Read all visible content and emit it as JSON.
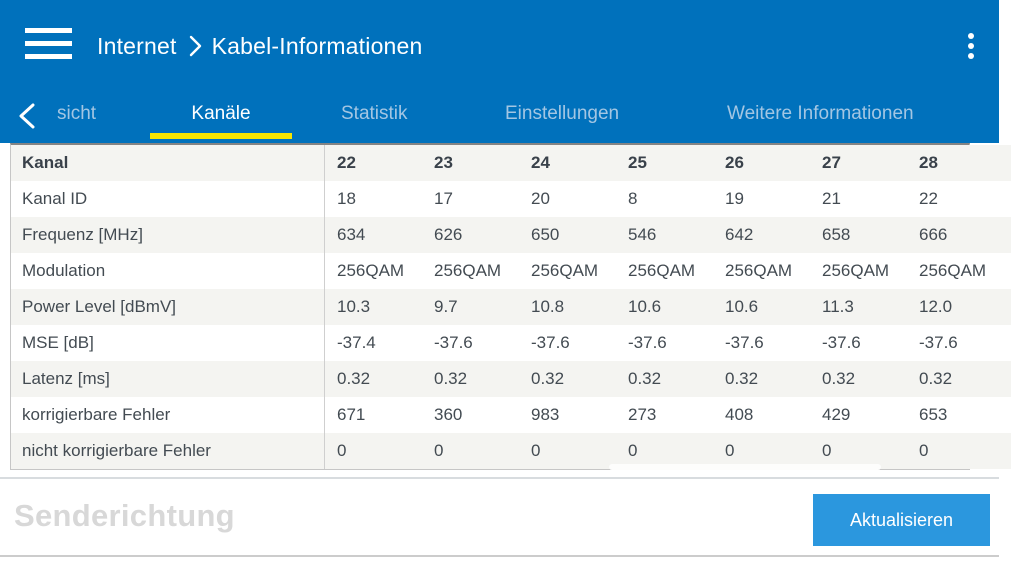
{
  "header": {
    "breadcrumb": {
      "section": "Internet",
      "separator": "›",
      "page": "Kabel-Informationen"
    }
  },
  "tabs": {
    "items": [
      {
        "label": "sicht",
        "active": false
      },
      {
        "label": "Kanäle",
        "active": true
      },
      {
        "label": "Statistik",
        "active": false
      },
      {
        "label": "Einstellungen",
        "active": false
      },
      {
        "label": "Weitere Informationen",
        "active": false
      }
    ]
  },
  "table": {
    "header_label": "Kanal",
    "channels": [
      "22",
      "23",
      "24",
      "25",
      "26",
      "27",
      "28"
    ],
    "rows": [
      {
        "label": "Kanal ID",
        "values": [
          "18",
          "17",
          "20",
          "8",
          "19",
          "21",
          "22"
        ]
      },
      {
        "label": "Frequenz [MHz]",
        "values": [
          "634",
          "626",
          "650",
          "546",
          "642",
          "658",
          "666"
        ]
      },
      {
        "label": "Modulation",
        "values": [
          "256QAM",
          "256QAM",
          "256QAM",
          "256QAM",
          "256QAM",
          "256QAM",
          "256QAM"
        ]
      },
      {
        "label": "Power Level [dBmV]",
        "values": [
          "10.3",
          "9.7",
          "10.8",
          "10.6",
          "10.6",
          "11.3",
          "12.0"
        ]
      },
      {
        "label": "MSE [dB]",
        "values": [
          "-37.4",
          "-37.6",
          "-37.6",
          "-37.6",
          "-37.6",
          "-37.6",
          "-37.6"
        ]
      },
      {
        "label": "Latenz [ms]",
        "values": [
          "0.32",
          "0.32",
          "0.32",
          "0.32",
          "0.32",
          "0.32",
          "0.32"
        ]
      },
      {
        "label": "korrigierbare Fehler",
        "values": [
          "671",
          "360",
          "983",
          "273",
          "408",
          "429",
          "653"
        ]
      },
      {
        "label": "nicht korrigierbare Fehler",
        "values": [
          "0",
          "0",
          "0",
          "0",
          "0",
          "0",
          "0"
        ]
      }
    ]
  },
  "footer": {
    "section_title": "Senderichtung",
    "refresh_button_label": "Aktualisieren"
  },
  "colors": {
    "header_bg": "#0071bc",
    "active_tab_underline": "#f7e500",
    "active_tab_text": "#ffffff",
    "inactive_tab_text": "#a3c6e3",
    "button_bg": "#2b97de",
    "row_alt_bg": "#f4f4f1",
    "table_text": "#434b52",
    "footer_title_text": "#d8d8d8"
  }
}
